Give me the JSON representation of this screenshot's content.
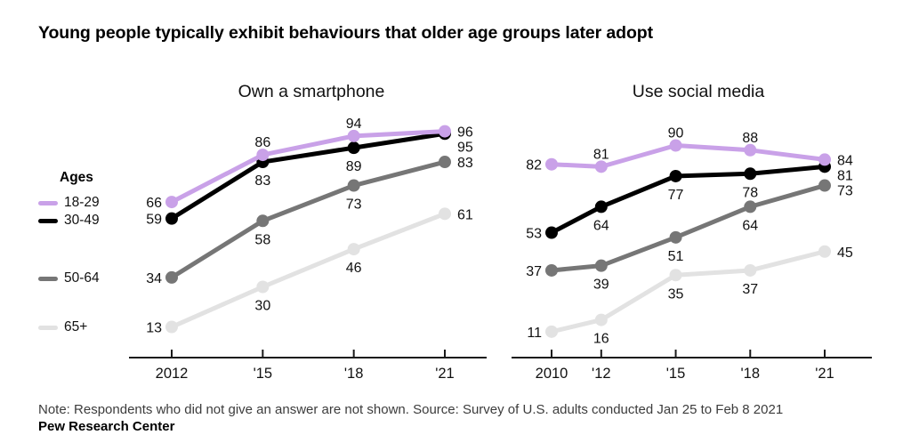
{
  "title": "Young people typically exhibit behaviours that older age groups later adopt",
  "legend": {
    "heading": "Ages",
    "items": [
      {
        "label": "18-29",
        "color": "#c9a1e8"
      },
      {
        "label": "30-49",
        "color": "#000000"
      },
      {
        "label": "50-64",
        "color": "#767676"
      },
      {
        "label": "65+",
        "color": "#e2e2e2"
      }
    ]
  },
  "chart_data": [
    {
      "type": "line",
      "title": "Own a smartphone",
      "x": [
        2012,
        2015,
        2018,
        2021
      ],
      "x_tick_labels": [
        "2012",
        "'15",
        "'18",
        "'21"
      ],
      "xlabel": "",
      "ylabel": "",
      "ylim": [
        0,
        100
      ],
      "grid": false,
      "legend_position": "left",
      "series": [
        {
          "name": "18-29",
          "color": "#c9a1e8",
          "values": [
            66,
            86,
            94,
            96
          ]
        },
        {
          "name": "30-49",
          "color": "#000000",
          "values": [
            59,
            83,
            89,
            95
          ]
        },
        {
          "name": "50-64",
          "color": "#767676",
          "values": [
            34,
            58,
            73,
            83
          ]
        },
        {
          "name": "65+",
          "color": "#e2e2e2",
          "values": [
            13,
            30,
            46,
            61
          ]
        }
      ]
    },
    {
      "type": "line",
      "title": "Use social media",
      "x": [
        2010,
        2012,
        2015,
        2018,
        2021
      ],
      "x_tick_labels": [
        "2010",
        "'12",
        "'15",
        "'18",
        "'21"
      ],
      "xlabel": "",
      "ylabel": "",
      "ylim": [
        0,
        100
      ],
      "grid": false,
      "legend_position": "left",
      "series": [
        {
          "name": "18-29",
          "color": "#c9a1e8",
          "values": [
            82,
            81,
            90,
            88,
            84
          ]
        },
        {
          "name": "30-49",
          "color": "#000000",
          "values": [
            53,
            64,
            77,
            78,
            81
          ]
        },
        {
          "name": "50-64",
          "color": "#767676",
          "values": [
            37,
            39,
            51,
            64,
            73
          ]
        },
        {
          "name": "65+",
          "color": "#e2e2e2",
          "values": [
            11,
            16,
            35,
            37,
            45
          ]
        }
      ]
    }
  ],
  "note": "Note: Respondents who did not give an answer are not shown. Source: Survey of U.S. adults conducted Jan 25 to Feb 8 2021",
  "source_org": "Pew Research Center"
}
